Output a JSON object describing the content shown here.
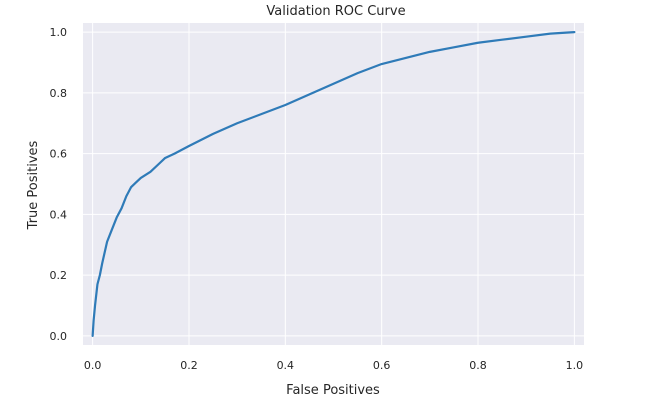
{
  "chart_data": {
    "type": "line",
    "title": "Validation ROC Curve",
    "xlabel": "False Positives",
    "ylabel": "True Positives",
    "xlim": [
      -0.02,
      1.02
    ],
    "ylim": [
      -0.03,
      1.03
    ],
    "xticks": [
      0.0,
      0.2,
      0.4,
      0.6,
      0.8,
      1.0
    ],
    "xtick_labels": [
      "0.0",
      "0.2",
      "0.4",
      "0.6",
      "0.8",
      "1.0"
    ],
    "yticks": [
      0.0,
      0.2,
      0.4,
      0.6,
      0.8,
      1.0
    ],
    "ytick_labels": [
      "0.0",
      "0.2",
      "0.4",
      "0.6",
      "0.8",
      "1.0"
    ],
    "grid": true,
    "style": "seaborn-darkgrid",
    "colors": {
      "background": "#eaeaf2",
      "grid": "#ffffff",
      "line": "#2f7bb8"
    },
    "series": [
      {
        "x": [
          0.0,
          0.002,
          0.005,
          0.01,
          0.015,
          0.02,
          0.03,
          0.04,
          0.05,
          0.06,
          0.07,
          0.08,
          0.09,
          0.1,
          0.12,
          0.14,
          0.15,
          0.17,
          0.2,
          0.25,
          0.3,
          0.35,
          0.4,
          0.45,
          0.5,
          0.55,
          0.6,
          0.65,
          0.7,
          0.75,
          0.8,
          0.85,
          0.9,
          0.95,
          1.0
        ],
        "y": [
          0.0,
          0.05,
          0.1,
          0.17,
          0.2,
          0.24,
          0.31,
          0.35,
          0.39,
          0.42,
          0.46,
          0.49,
          0.505,
          0.52,
          0.54,
          0.57,
          0.585,
          0.6,
          0.625,
          0.665,
          0.7,
          0.73,
          0.76,
          0.795,
          0.83,
          0.865,
          0.895,
          0.915,
          0.935,
          0.95,
          0.965,
          0.975,
          0.985,
          0.995,
          1.0
        ]
      }
    ]
  }
}
